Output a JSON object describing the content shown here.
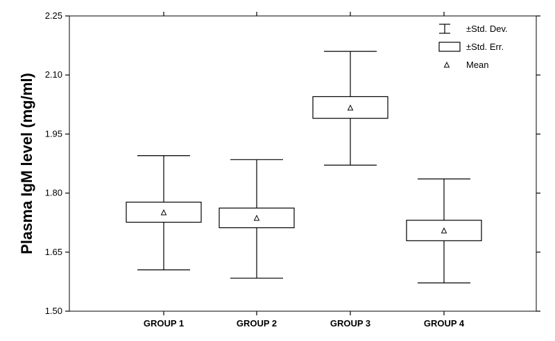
{
  "chart_data": {
    "type": "box",
    "title": "",
    "xlabel": "",
    "ylabel": "Plasma IgM level (mg/ml)",
    "ylim": [
      1.5,
      2.25
    ],
    "yticks": [
      1.5,
      1.65,
      1.8,
      1.95,
      2.1,
      2.25
    ],
    "ytick_labels": [
      "1.50",
      "1.65",
      "1.80",
      "1.95",
      "2.10",
      "2.25"
    ],
    "categories": [
      "GROUP 1",
      "GROUP 2",
      "GROUP 3",
      "GROUP 4"
    ],
    "groups": [
      {
        "mean": 1.75,
        "se_low": 1.726,
        "se_high": 1.777,
        "sd_low": 1.605,
        "sd_high": 1.895
      },
      {
        "mean": 1.736,
        "se_low": 1.712,
        "se_high": 1.762,
        "sd_low": 1.584,
        "sd_high": 1.885
      },
      {
        "mean": 2.016,
        "se_low": 1.99,
        "se_high": 2.045,
        "sd_low": 1.871,
        "sd_high": 2.16
      },
      {
        "mean": 1.704,
        "se_low": 1.679,
        "se_high": 1.731,
        "sd_low": 1.572,
        "sd_high": 1.836
      }
    ],
    "legend": {
      "position": "top-right",
      "items": [
        {
          "symbol": "whisker",
          "label": "±Std. Dev."
        },
        {
          "symbol": "box",
          "label": "±Std. Err."
        },
        {
          "symbol": "triangle",
          "label": "Mean"
        }
      ]
    },
    "grid": false
  }
}
